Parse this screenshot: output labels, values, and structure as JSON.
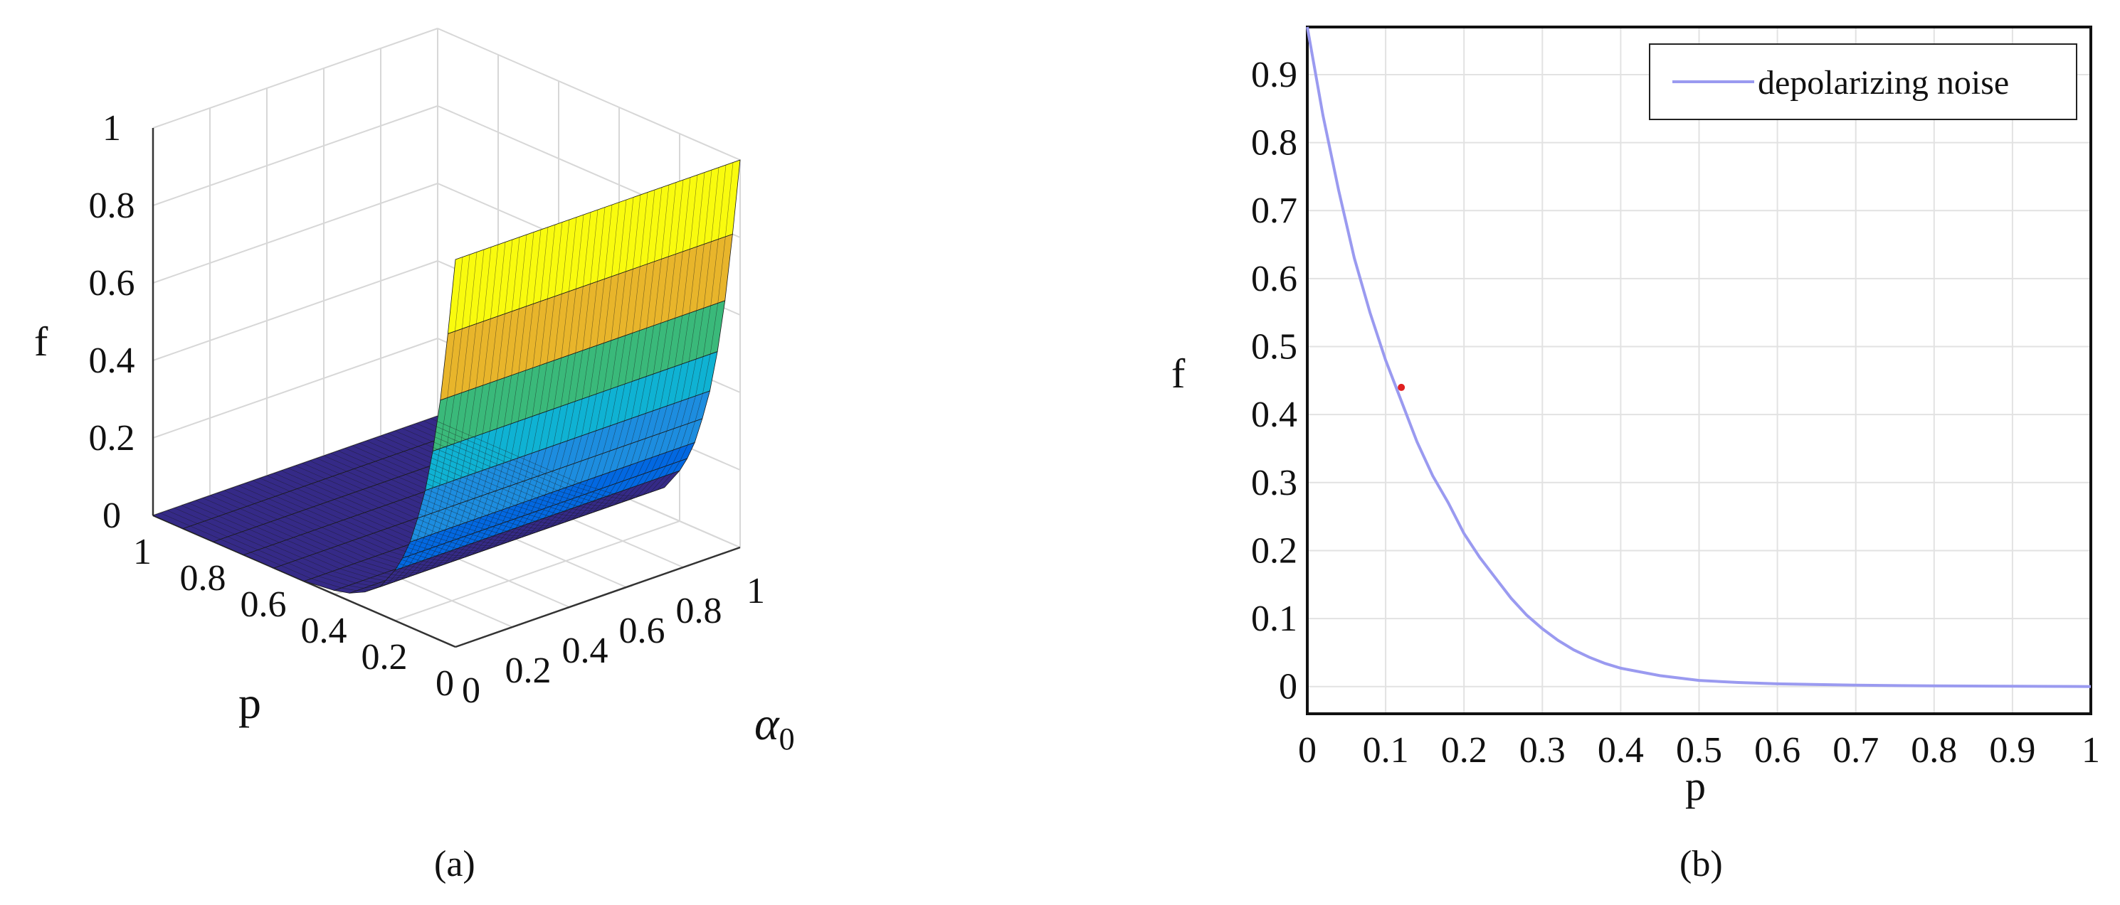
{
  "chart_data": [
    {
      "type": "surface",
      "panel_label": "(a)",
      "xlabel": "p",
      "ylabel": "α",
      "ylabel_subscript": "0",
      "zlabel": "f",
      "x_ticks": [
        "0",
        "0.2",
        "0.4",
        "0.6",
        "0.8",
        "1"
      ],
      "y_ticks": [
        "0",
        "0.2",
        "0.4",
        "0.6",
        "0.8",
        "1"
      ],
      "z_ticks": [
        "0",
        "0.2",
        "0.4",
        "0.6",
        "0.8",
        "1"
      ],
      "xlim": [
        0,
        1
      ],
      "ylim": [
        0,
        1
      ],
      "zlim": [
        0,
        1
      ],
      "grid": true,
      "description_of_surface": "f = 1 at p = 0, decaying to about 0 by p = 0.4, flat 0 for larger p; independent of α0",
      "surface_profile_p": [
        0,
        0.025,
        0.05,
        0.075,
        0.1,
        0.125,
        0.15,
        0.175,
        0.2,
        0.25,
        0.3,
        0.35,
        0.4,
        0.5,
        0.6,
        0.7,
        0.8,
        0.9,
        1
      ],
      "surface_profile_f": [
        1,
        0.8,
        0.62,
        0.48,
        0.37,
        0.29,
        0.22,
        0.17,
        0.13,
        0.07,
        0.04,
        0.02,
        0.01,
        0,
        0,
        0,
        0,
        0,
        0
      ],
      "colormap": [
        "#352a87",
        "#0268e1",
        "#1d8ddf",
        "#0fb2d3",
        "#3ab97a",
        "#8bbe38",
        "#e8b52b",
        "#f9d22a",
        "#f9fb0e"
      ]
    },
    {
      "type": "line",
      "panel_label": "(b)",
      "xlabel": "p",
      "ylabel": "f",
      "x_ticks": [
        "0",
        "0.1",
        "0.2",
        "0.3",
        "0.4",
        "0.5",
        "0.6",
        "0.7",
        "0.8",
        "0.9",
        "1"
      ],
      "y_ticks": [
        "0",
        "0.1",
        "0.2",
        "0.3",
        "0.4",
        "0.5",
        "0.6",
        "0.7",
        "0.8",
        "0.9"
      ],
      "xlim": [
        0,
        1
      ],
      "ylim": [
        -0.04,
        0.97
      ],
      "grid": true,
      "legend_position": "top-right",
      "series": [
        {
          "name": "depolarizing noise",
          "color": "#9a9af0",
          "x": [
            0,
            0.02,
            0.04,
            0.06,
            0.08,
            0.1,
            0.12,
            0.14,
            0.16,
            0.18,
            0.2,
            0.22,
            0.24,
            0.26,
            0.28,
            0.3,
            0.32,
            0.34,
            0.36,
            0.38,
            0.4,
            0.45,
            0.5,
            0.55,
            0.6,
            0.7,
            0.8,
            0.9,
            1
          ],
          "y": [
            0.97,
            0.84,
            0.73,
            0.63,
            0.55,
            0.48,
            0.42,
            0.36,
            0.31,
            0.27,
            0.225,
            0.19,
            0.16,
            0.13,
            0.105,
            0.085,
            0.068,
            0.054,
            0.043,
            0.034,
            0.027,
            0.016,
            0.009,
            0.006,
            0.004,
            0.002,
            0.001,
            0.0005,
            0
          ]
        }
      ],
      "marker_point": {
        "x": 0.12,
        "y": 0.44,
        "color": "#e02020"
      }
    }
  ]
}
